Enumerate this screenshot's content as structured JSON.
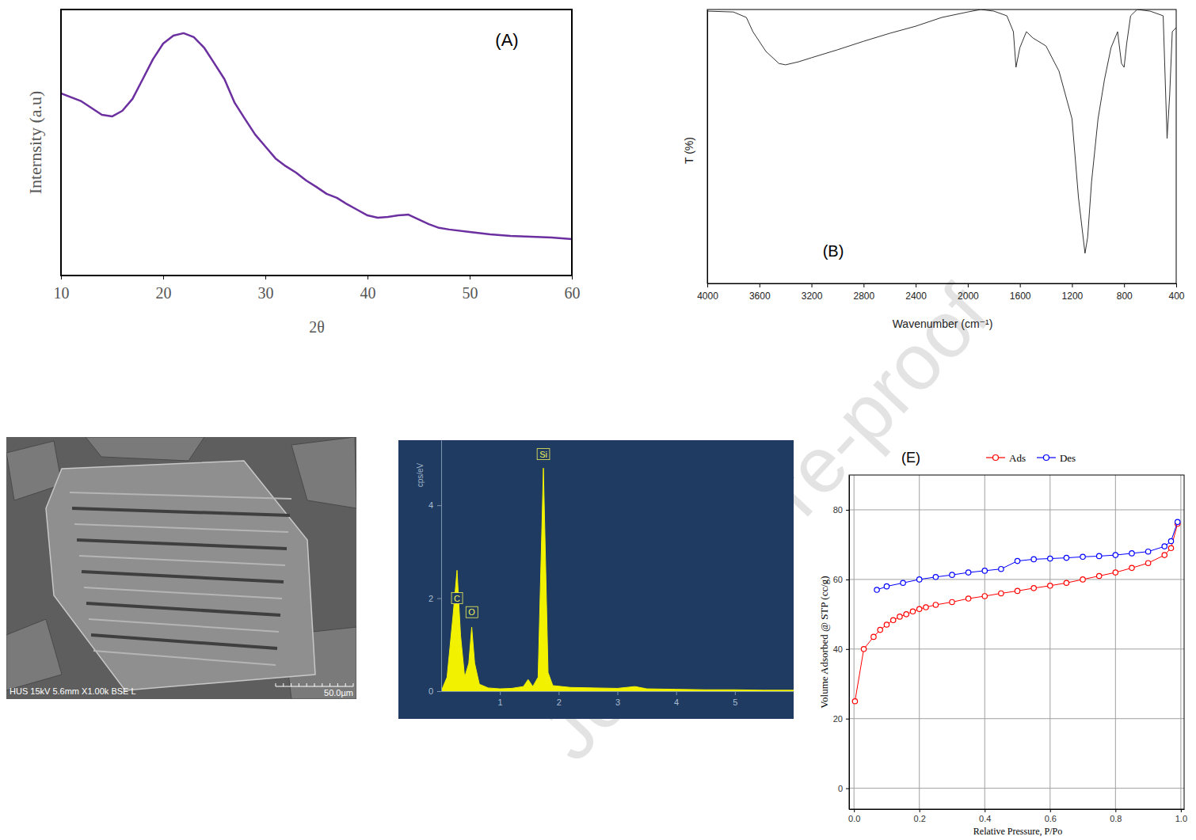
{
  "watermark": "Journal Pre-proof",
  "chart_data": [
    {
      "type": "line",
      "title": "(A)",
      "x_label": "2θ",
      "y_label": "Internsity (a.u)",
      "x": [
        10,
        12,
        14,
        15,
        16,
        17,
        18,
        19,
        20,
        21,
        22,
        23,
        24,
        25,
        26,
        27,
        28,
        29,
        30,
        31,
        32,
        33,
        34,
        35,
        36,
        37,
        38,
        39,
        40,
        41,
        42,
        43,
        44,
        45,
        46,
        47,
        48,
        50,
        52,
        54,
        56,
        58,
        60
      ],
      "series": [
        {
          "color": "#6b2fa0",
          "values": [
            68.5,
            65.5,
            60.4,
            59.8,
            61.9,
            66.4,
            73.8,
            81.3,
            87.2,
            90.2,
            91.1,
            89.6,
            85.7,
            79.8,
            73.8,
            64.9,
            58.9,
            53,
            48.5,
            44,
            41.1,
            38.7,
            35.7,
            33.3,
            30.7,
            29.2,
            26.8,
            24.7,
            22.6,
            21.7,
            22,
            22.6,
            22.9,
            21.1,
            19.3,
            17.9,
            17.3,
            16.4,
            15.5,
            14.9,
            14.6,
            14.3,
            13.7
          ]
        }
      ],
      "xlim": [
        10,
        60
      ],
      "xticks": [
        10,
        20,
        30,
        40,
        50,
        60
      ],
      "ylim": [
        0,
        100
      ],
      "tick_labels": "x"
    },
    {
      "type": "line",
      "title": "(B)",
      "x_label": "Wavenumber (cm⁻¹)",
      "y_label": "T (%)",
      "x": [
        4000,
        3800,
        3700,
        3650,
        3550,
        3450,
        3400,
        3300,
        3200,
        3000,
        2800,
        2600,
        2400,
        2200,
        2000,
        1900,
        1800,
        1700,
        1650,
        1630,
        1600,
        1550,
        1500,
        1400,
        1300,
        1200,
        1150,
        1100,
        1080,
        1050,
        1000,
        950,
        900,
        850,
        820,
        800,
        780,
        750,
        700,
        600,
        500,
        470,
        450,
        430,
        400
      ],
      "series": [
        {
          "color": "#333333",
          "values": [
            99.4,
            99.1,
            97.1,
            91.9,
            84.7,
            80.3,
            79.8,
            80.9,
            82.4,
            85.3,
            88.4,
            91.3,
            93.9,
            97.1,
            99.1,
            100,
            99.4,
            97.7,
            91.9,
            78.9,
            86.1,
            91.9,
            89.6,
            86.7,
            77.5,
            60.1,
            31.2,
            11,
            16.8,
            37,
            60.1,
            74.6,
            86.1,
            91.9,
            80.3,
            78.9,
            87.6,
            97.7,
            100,
            99.4,
            97.7,
            52.9,
            68.8,
            91.9,
            93.4
          ]
        }
      ],
      "xlim": [
        4000,
        400
      ],
      "xticks": [
        4000,
        3600,
        3200,
        2800,
        2400,
        2000,
        1600,
        1200,
        800,
        400
      ],
      "ylim": [
        0,
        100
      ],
      "tick_labels": "x"
    },
    {
      "type": "image",
      "annotations": [
        "HUS 15kV 5.6mm X1.00k BSE L",
        "50.0µm"
      ]
    },
    {
      "type": "area",
      "y_label": "cps/eV",
      "x": [
        0,
        0.1,
        0.2,
        0.27,
        0.33,
        0.4,
        0.47,
        0.52,
        0.57,
        0.65,
        0.8,
        1.0,
        1.2,
        1.4,
        1.48,
        1.56,
        1.65,
        1.74,
        1.82,
        1.9,
        2.2,
        2.6,
        3.0,
        3.3,
        3.5,
        4.0,
        4.5,
        5.0,
        5.5,
        6.0
      ],
      "series": [
        {
          "color": "#f2f200",
          "values": [
            0,
            0.3,
            1.6,
            2.6,
            1.2,
            0.3,
            0.6,
            1.38,
            0.6,
            0.15,
            0.07,
            0.05,
            0.06,
            0.1,
            0.25,
            0.1,
            0.3,
            4.8,
            0.4,
            0.12,
            0.08,
            0.07,
            0.06,
            0.1,
            0.05,
            0.04,
            0.03,
            0.03,
            0.02,
            0.02
          ]
        }
      ],
      "xlim": [
        0,
        6
      ],
      "xticks": [
        1,
        2,
        3,
        4,
        5
      ],
      "ylim": [
        0,
        5.4
      ],
      "yticks": [
        0,
        2,
        4
      ],
      "annotations": [
        {
          "text": "C",
          "x": 0.27,
          "y": 2.0
        },
        {
          "text": "O",
          "x": 0.52,
          "y": 1.7
        },
        {
          "text": "Si",
          "x": 1.74,
          "y": 5.1
        }
      ]
    },
    {
      "type": "line",
      "title": "(E)",
      "x_label": "Relative Pressure, P/Po",
      "y_label": "Volume Adsorbed @ STP (cc/g)",
      "series": [
        {
          "name": "Ads",
          "color": "#ff0000",
          "marker": "circle",
          "x": [
            0.003,
            0.03,
            0.06,
            0.08,
            0.1,
            0.12,
            0.14,
            0.16,
            0.18,
            0.2,
            0.22,
            0.25,
            0.3,
            0.35,
            0.4,
            0.45,
            0.5,
            0.55,
            0.6,
            0.65,
            0.7,
            0.75,
            0.8,
            0.85,
            0.9,
            0.95,
            0.97,
            0.99
          ],
          "values": [
            25,
            40,
            43.5,
            45.5,
            47,
            48.3,
            49.3,
            50,
            50.8,
            51.5,
            52,
            52.7,
            53.5,
            54.5,
            55.2,
            56,
            56.7,
            57.5,
            58.2,
            59,
            60,
            61,
            62,
            63.3,
            64.7,
            67,
            69,
            76
          ]
        },
        {
          "name": "Des",
          "color": "#0000ff",
          "marker": "circle",
          "x": [
            0.99,
            0.97,
            0.95,
            0.9,
            0.85,
            0.8,
            0.75,
            0.7,
            0.65,
            0.6,
            0.55,
            0.5,
            0.45,
            0.4,
            0.35,
            0.3,
            0.25,
            0.2,
            0.15,
            0.1,
            0.07
          ],
          "values": [
            76.5,
            71,
            69.5,
            68,
            67.5,
            67,
            66.7,
            66.5,
            66.2,
            66,
            65.8,
            65.3,
            63,
            62.5,
            62,
            61.3,
            60.7,
            60,
            59,
            58,
            57
          ]
        }
      ],
      "xlim": [
        -0.015,
        1.01
      ],
      "xticks": [
        {
          "value": 0,
          "label": "0.0"
        },
        0.2,
        0.4,
        0.6,
        0.8,
        {
          "value": 1,
          "label": "1.0"
        }
      ],
      "ylim": [
        -6,
        90
      ],
      "yticks": [
        0,
        20,
        40,
        60,
        80
      ],
      "grid": true,
      "legend": "top"
    }
  ]
}
